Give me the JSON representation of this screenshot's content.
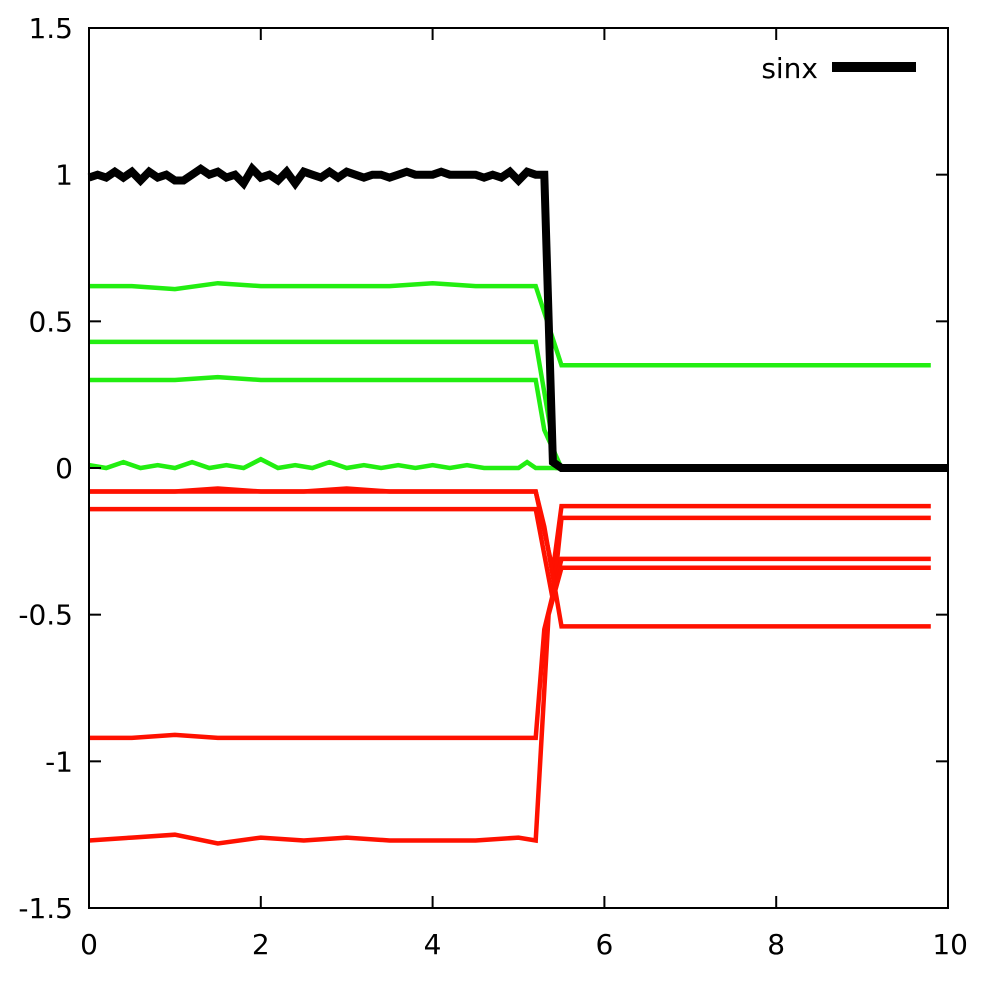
{
  "chart_data": {
    "type": "line",
    "title": "",
    "xlabel": "",
    "ylabel": "",
    "xlim": [
      0,
      10
    ],
    "ylim": [
      -1.5,
      1.5
    ],
    "xticks": [
      "0",
      "2",
      "4",
      "6",
      "8",
      "10"
    ],
    "yticks": [
      "1.5",
      "1",
      "0.5",
      "0",
      "-0.5",
      "-1",
      "-1.5"
    ],
    "grid": false,
    "legend": {
      "placement": "top-right",
      "entries": [
        {
          "label": "sinx",
          "color": "#000000"
        }
      ]
    },
    "colors": {
      "main": "#000000",
      "positive": "#22ee11",
      "negative": "#ff1100"
    },
    "series": [
      {
        "name": "sinx",
        "role": "main",
        "x": [
          0,
          0.1,
          0.2,
          0.3,
          0.4,
          0.5,
          0.6,
          0.7,
          0.8,
          0.9,
          1.0,
          1.1,
          1.2,
          1.3,
          1.4,
          1.5,
          1.6,
          1.7,
          1.8,
          1.9,
          2.0,
          2.1,
          2.2,
          2.3,
          2.4,
          2.5,
          2.6,
          2.7,
          2.8,
          2.9,
          3.0,
          3.1,
          3.2,
          3.3,
          3.4,
          3.5,
          3.6,
          3.7,
          3.8,
          3.9,
          4.0,
          4.1,
          4.2,
          4.3,
          4.4,
          4.5,
          4.6,
          4.7,
          4.8,
          4.9,
          5.0,
          5.1,
          5.2,
          5.3,
          5.4,
          5.5,
          5.6,
          10
        ],
        "y": [
          0.99,
          1.0,
          0.99,
          1.01,
          0.99,
          1.01,
          0.98,
          1.01,
          0.99,
          1.0,
          0.98,
          0.98,
          1.0,
          1.02,
          1.0,
          1.01,
          0.99,
          1.0,
          0.97,
          1.02,
          0.99,
          1.0,
          0.98,
          1.01,
          0.97,
          1.01,
          1.0,
          0.99,
          1.01,
          0.99,
          1.01,
          1.0,
          0.99,
          1.0,
          1.0,
          0.99,
          1.0,
          1.01,
          1.0,
          1.0,
          1.0,
          1.01,
          1.0,
          1.0,
          1.0,
          1.0,
          0.99,
          1.0,
          0.99,
          1.01,
          0.98,
          1.01,
          1.0,
          1.0,
          0.02,
          0.0,
          0.0,
          0.0
        ]
      },
      {
        "role": "positive",
        "x": [
          0,
          0.5,
          1.0,
          1.5,
          2.0,
          2.5,
          3.0,
          3.5,
          4.0,
          4.5,
          5.0,
          5.2,
          5.5,
          9.8
        ],
        "y": [
          0.62,
          0.62,
          0.61,
          0.63,
          0.62,
          0.62,
          0.62,
          0.62,
          0.63,
          0.62,
          0.62,
          0.62,
          0.35,
          0.35
        ]
      },
      {
        "role": "positive",
        "x": [
          0,
          0.5,
          1.0,
          1.5,
          2.0,
          2.5,
          3.0,
          3.5,
          4.0,
          4.5,
          5.0,
          5.2,
          5.45,
          9.8
        ],
        "y": [
          0.43,
          0.43,
          0.43,
          0.43,
          0.43,
          0.43,
          0.43,
          0.43,
          0.43,
          0.43,
          0.43,
          0.43,
          0.0,
          0.0
        ]
      },
      {
        "role": "positive",
        "x": [
          0,
          0.5,
          1.0,
          1.5,
          2.0,
          2.5,
          3.0,
          3.5,
          4.0,
          4.5,
          5.0,
          5.2,
          5.3,
          5.5,
          9.8
        ],
        "y": [
          0.3,
          0.3,
          0.3,
          0.31,
          0.3,
          0.3,
          0.3,
          0.3,
          0.3,
          0.3,
          0.3,
          0.3,
          0.13,
          0.0,
          0.0
        ]
      },
      {
        "role": "positive",
        "x": [
          0,
          0.2,
          0.4,
          0.6,
          0.8,
          1.0,
          1.2,
          1.4,
          1.6,
          1.8,
          2.0,
          2.2,
          2.4,
          2.6,
          2.8,
          3.0,
          3.2,
          3.4,
          3.6,
          3.8,
          4.0,
          4.2,
          4.4,
          4.6,
          4.8,
          5.0,
          5.1,
          5.2,
          5.5,
          9.8
        ],
        "y": [
          0.01,
          0.0,
          0.02,
          0.0,
          0.01,
          0.0,
          0.02,
          0.0,
          0.01,
          0.0,
          0.03,
          0.0,
          0.01,
          0.0,
          0.02,
          0.0,
          0.01,
          0.0,
          0.01,
          0.0,
          0.01,
          0.0,
          0.01,
          0.0,
          0.0,
          0.0,
          0.02,
          0.0,
          0.0,
          0.0
        ]
      },
      {
        "role": "negative",
        "x": [
          0,
          0.5,
          1.0,
          1.5,
          2.0,
          2.5,
          3.0,
          3.5,
          4.0,
          4.5,
          5.0,
          5.2,
          5.4,
          5.5,
          9.8
        ],
        "y": [
          -0.08,
          -0.08,
          -0.08,
          -0.07,
          -0.08,
          -0.08,
          -0.07,
          -0.08,
          -0.08,
          -0.08,
          -0.08,
          -0.08,
          -0.35,
          -0.13,
          -0.13
        ]
      },
      {
        "role": "negative",
        "x": [
          0,
          0.5,
          1.0,
          1.5,
          2.0,
          2.5,
          3.0,
          3.5,
          4.0,
          4.5,
          5.0,
          5.2,
          5.4,
          5.5,
          9.8
        ],
        "y": [
          -0.14,
          -0.14,
          -0.14,
          -0.14,
          -0.14,
          -0.14,
          -0.14,
          -0.14,
          -0.14,
          -0.14,
          -0.14,
          -0.14,
          -0.45,
          -0.17,
          -0.17
        ]
      },
      {
        "role": "negative",
        "x": [
          0,
          0.5,
          1.0,
          1.5,
          2.0,
          2.5,
          3.0,
          3.5,
          4.0,
          4.5,
          5.0,
          5.2,
          5.3,
          5.5,
          9.8
        ],
        "y": [
          -0.92,
          -0.92,
          -0.91,
          -0.92,
          -0.92,
          -0.92,
          -0.92,
          -0.92,
          -0.92,
          -0.92,
          -0.92,
          -0.92,
          -0.55,
          -0.31,
          -0.31
        ]
      },
      {
        "role": "negative",
        "x": [
          0,
          0.5,
          1.0,
          1.5,
          2.0,
          2.5,
          3.0,
          3.5,
          4.0,
          4.5,
          5.0,
          5.2,
          5.35,
          5.5,
          9.8
        ],
        "y": [
          -1.27,
          -1.26,
          -1.25,
          -1.28,
          -1.26,
          -1.27,
          -1.26,
          -1.27,
          -1.27,
          -1.27,
          -1.26,
          -1.27,
          -0.5,
          -0.34,
          -0.34
        ]
      },
      {
        "role": "negative",
        "x": [
          0,
          0.5,
          1.0,
          1.5,
          2.0,
          2.5,
          3.0,
          3.5,
          4.0,
          4.5,
          5.0,
          5.2,
          5.3,
          5.5,
          9.8
        ],
        "y": [
          -0.08,
          -0.08,
          -0.08,
          -0.08,
          -0.08,
          -0.08,
          -0.08,
          -0.08,
          -0.08,
          -0.08,
          -0.08,
          -0.08,
          -0.2,
          -0.54,
          -0.54
        ]
      }
    ]
  }
}
